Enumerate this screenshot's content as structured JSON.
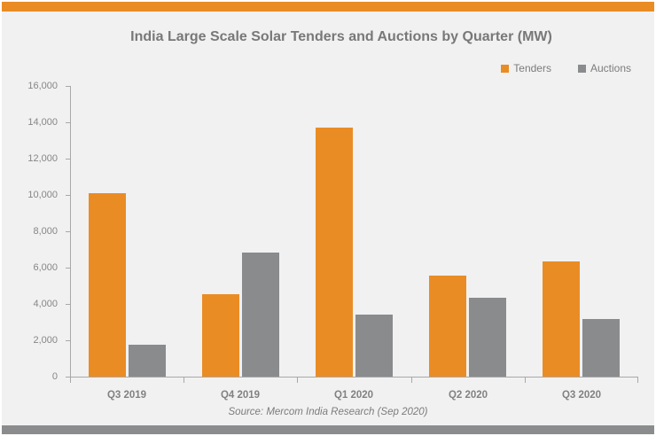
{
  "title": "India Large Scale Solar Tenders and Auctions by Quarter (MW)",
  "source_note": "Source: Mercom India Research (Sep 2020)",
  "colors": {
    "accent_orange": "#EA8C24",
    "bar_gray": "#898B8D",
    "footer_bar_gray": "#8A8C8E",
    "chart_background": "#F1F1F2",
    "axis_line": "#A8A8A8"
  },
  "y_axis": {
    "min": 0,
    "max": 16000,
    "tick_step": 2000,
    "tick_labels": [
      "0",
      "2,000",
      "4,000",
      "6,000",
      "8,000",
      "10,000",
      "12,000",
      "14,000",
      "16,000"
    ]
  },
  "chart_data": {
    "type": "bar",
    "title": "India Large Scale Solar Tenders and Auctions by Quarter (MW)",
    "categories": [
      "Q3 2019",
      "Q4 2019",
      "Q1 2020",
      "Q2 2020",
      "Q3 2020"
    ],
    "series": [
      {
        "name": "Tenders",
        "color": "#EA8C24",
        "values": [
          10150,
          4600,
          13750,
          5600,
          6400
        ]
      },
      {
        "name": "Auctions",
        "color": "#898B8D",
        "values": [
          1800,
          6900,
          3450,
          4400,
          3200
        ]
      }
    ],
    "xlabel": "",
    "ylabel": "",
    "ylim": [
      0,
      16000
    ],
    "ytick_step": 2000,
    "grid": false,
    "legend_position": "top-right",
    "annotation": "Source: Mercom India Research (Sep 2020)"
  }
}
